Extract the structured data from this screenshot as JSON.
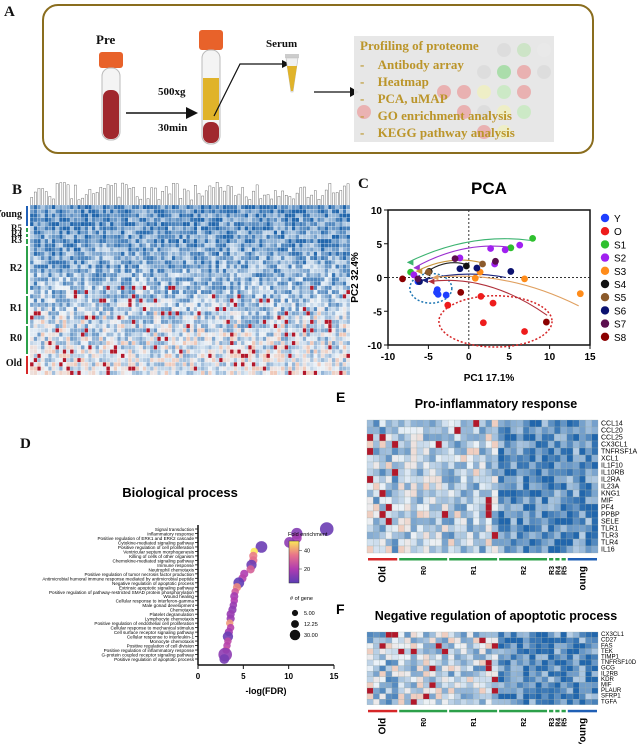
{
  "panelA": {
    "letter": "A",
    "pre_label": "Pre",
    "spin_speed": "500xg",
    "spin_time": "30min",
    "serum_label": "Serum",
    "profiling_title": "Profiling of proteome",
    "profiling_items": [
      "Antibody array",
      "Heatmap",
      "PCA, uMAP",
      "GO enrichment analysis",
      "KEGG pathway analysis"
    ],
    "colors": {
      "border": "#8a6d1e",
      "text": "#b8901f",
      "blood": "#a0282e",
      "serum": "#e0b32a",
      "cap": "#e8622a"
    }
  },
  "panelB": {
    "letter": "B",
    "groups": [
      {
        "label": "Young",
        "color": "#1f5fb5"
      },
      {
        "label": "R5",
        "color": "#2ca04a"
      },
      {
        "label": "R4",
        "color": "#2ca04a"
      },
      {
        "label": "R3",
        "color": "#2ca04a"
      },
      {
        "label": "R2",
        "color": "#2ca04a"
      },
      {
        "label": "R1",
        "color": "#2ca04a"
      },
      {
        "label": "R0",
        "color": "#2ca04a"
      },
      {
        "label": "Old",
        "color": "#d62728"
      }
    ]
  },
  "chart_data": [
    {
      "type": "scatter",
      "id": "pca",
      "letter": "C",
      "title": "PCA",
      "xlabel": "PC1 17.1%",
      "ylabel": "PC2 32.4%",
      "xlim": [
        -10,
        15
      ],
      "ylim": [
        -10,
        10
      ],
      "xticks": [
        -10,
        -5,
        0,
        5,
        10,
        15
      ],
      "yticks": [
        -10,
        -5,
        0,
        5,
        10
      ],
      "legend_position": "right",
      "series": [
        {
          "name": "Y",
          "color": "#1f3fff",
          "points": [
            [
              -3.9,
              -1.8
            ],
            [
              -4.0,
              -2.2
            ],
            [
              -3.8,
              -2.5
            ],
            [
              -2.8,
              -2.6
            ],
            [
              -6.3,
              -0.6
            ]
          ]
        },
        {
          "name": "O",
          "color": "#ee1c1c",
          "points": [
            [
              -2.6,
              -4.1
            ],
            [
              1.5,
              -2.8
            ],
            [
              3.0,
              -3.8
            ],
            [
              1.8,
              -6.7
            ],
            [
              6.9,
              -8.0
            ]
          ]
        },
        {
          "name": "S1",
          "color": "#2fc02f",
          "points": [
            [
              7.9,
              5.8
            ],
            [
              5.2,
              4.4
            ],
            [
              -7.2,
              0.8
            ]
          ]
        },
        {
          "name": "S2",
          "color": "#a020f0",
          "points": [
            [
              2.7,
              4.3
            ],
            [
              4.5,
              4.1
            ],
            [
              6.3,
              4.8
            ],
            [
              -1.1,
              2.9
            ],
            [
              3.2,
              2.0
            ],
            [
              -6.8,
              0.4
            ]
          ]
        },
        {
          "name": "S3",
          "color": "#ff8c1a",
          "points": [
            [
              13.8,
              -2.4
            ],
            [
              6.9,
              -0.2
            ],
            [
              1.4,
              0.8
            ],
            [
              0.8,
              -0.1
            ]
          ]
        },
        {
          "name": "S4",
          "color": "#111111",
          "points": [
            [
              -0.3,
              1.7
            ],
            [
              -4.9,
              0.9
            ]
          ]
        },
        {
          "name": "S5",
          "color": "#8b5a2b",
          "points": [
            [
              1.7,
              2.0
            ],
            [
              -5.0,
              0.8
            ]
          ]
        },
        {
          "name": "S6",
          "color": "#0b1270",
          "points": [
            [
              5.2,
              0.9
            ],
            [
              -1.1,
              1.3
            ],
            [
              1.0,
              1.4
            ],
            [
              -6.1,
              -0.6
            ]
          ]
        },
        {
          "name": "S7",
          "color": "#5c0f4e",
          "points": [
            [
              -1.7,
              2.8
            ],
            [
              3.3,
              2.4
            ],
            [
              -6.3,
              -0.2
            ]
          ]
        },
        {
          "name": "S8",
          "color": "#8b0000",
          "points": [
            [
              -8.2,
              -0.2
            ],
            [
              -1.0,
              -2.2
            ],
            [
              9.6,
              -6.6
            ]
          ]
        }
      ],
      "trajectories": [
        {
          "color": "#3cb371",
          "from": [
            7.6,
            5.5
          ],
          "to": [
            -7.6,
            2.2
          ]
        },
        {
          "color": "#9b30d0",
          "from": [
            5.6,
            4.4
          ],
          "to": [
            -6.8,
            1.4
          ]
        },
        {
          "color": "#c8963c",
          "from": [
            1.6,
            2.2
          ],
          "to": [
            -6.5,
            0.9
          ]
        },
        {
          "color": "#222222",
          "from": [
            0.0,
            1.8
          ],
          "to": [
            -5.5,
            0.6
          ]
        },
        {
          "color": "#1a237e",
          "from": [
            4.6,
            0.0
          ],
          "to": [
            -5.8,
            -0.4
          ]
        },
        {
          "color": "#e0a060",
          "from": [
            13.6,
            -4.2
          ],
          "to": [
            -4.5,
            0.0
          ]
        },
        {
          "color": "#b0303a",
          "from": [
            9.7,
            -5.6
          ],
          "to": [
            -5.0,
            -0.6
          ]
        }
      ],
      "ellipses": [
        {
          "color": "#1f77b4",
          "center": [
            -4.7,
            -1.6
          ],
          "radii": [
            2.6,
            2.2
          ]
        },
        {
          "color": "#d62728",
          "center": [
            3.3,
            -6.5
          ],
          "radii": [
            7.0,
            3.8
          ]
        }
      ]
    },
    {
      "type": "scatter",
      "id": "go-bubble",
      "letter": "D",
      "title": "Biological process",
      "xlabel": "-log(FDR)",
      "ylabel": "",
      "xlim": [
        0,
        15
      ],
      "xticks": [
        0,
        5,
        10,
        15
      ],
      "categories": [
        "Signal transduction",
        "Inflammatory response",
        "Positive regulation of ERK1 and ERK2 cascade",
        "Cytokine-mediated signaling pathway",
        "Positive regulation of cell proliferation",
        "Ventricular septum morphogenesis",
        "Killing of cells of other organism",
        "Chemokine-mediated signaling pathway",
        "Immune response",
        "Neutrophil chemotaxis",
        "Positive regulation of tumor necrosis factor production",
        "Antimicrobial humoral immune response mediated by antimicrobial peptide",
        "Negative regulation of apoptotic process",
        "Extrinsic apoptotic signaling pathway",
        "Positive regulation of pathway-restricted SMAD protein phosphorylation",
        "Wound healing",
        "Cellular response to interferon-gamma",
        "Male gonad development",
        "Chemotaxis",
        "Platelet degranulation",
        "Lymphocyte chemotaxis",
        "Positive regulation of endothelial cell proliferation",
        "Cellular response to mechanical stimulus",
        "Cell surface receptor signaling pathway",
        "Cellular response to interleukin-1",
        "Monocyte chemotaxis",
        "Positive regulation of cell division",
        "Positive regulation of inflammatory response",
        "G-protein coupled receptor signaling pathway",
        "Positive regulation of apoptotic process"
      ],
      "x_values": [
        14.2,
        10.9,
        10.9,
        10.1,
        7.0,
        6.2,
        6.1,
        6.1,
        5.9,
        5.8,
        5.1,
        4.9,
        4.5,
        4.3,
        4.1,
        4.0,
        4.0,
        3.9,
        3.8,
        3.6,
        3.6,
        3.5,
        3.6,
        3.4,
        3.3,
        3.3,
        3.2,
        3.1,
        3.0,
        2.9
      ],
      "fold_enrichment": [
        8,
        12,
        18,
        14,
        8,
        50,
        36,
        34,
        8,
        30,
        20,
        22,
        6,
        38,
        28,
        18,
        20,
        16,
        14,
        16,
        16,
        40,
        22,
        18,
        8,
        24,
        22,
        28,
        14,
        10
      ],
      "gene_count": [
        30,
        18,
        12,
        16,
        20,
        5,
        7,
        7,
        14,
        7,
        7,
        7,
        16,
        7,
        5,
        7,
        5,
        5,
        7,
        7,
        7,
        5,
        5,
        7,
        14,
        5,
        5,
        5,
        30,
        12
      ],
      "color_legend": {
        "title": "Fold enrichment",
        "ticks": [
          20,
          40
        ],
        "range": [
          5,
          50
        ],
        "colors": [
          "#5b3db5",
          "#b03cb0",
          "#e8748a",
          "#fbe85a"
        ]
      },
      "size_legend": {
        "title": "# of gene",
        "values": [
          "5.00",
          "12.25",
          "30.00"
        ]
      }
    },
    {
      "type": "heatmap",
      "id": "pro-inflammatory",
      "letter": "E",
      "title": "Pro-inflammatory response",
      "rows": [
        "CCL14",
        "CCL20",
        "CCL25",
        "CX3CL1",
        "TNFRSF1A",
        "XCL1",
        "IL1F10",
        "IL10RB",
        "IL2RA",
        "IL23A",
        "KNG1",
        "MIF",
        "PF4",
        "PPBP",
        "SELE",
        "TLR1",
        "TLR3",
        "TLR4",
        "IL16"
      ],
      "groups": [
        {
          "label": "Old",
          "color": "#d62728",
          "n": 5
        },
        {
          "label": "R0",
          "color": "#2ca04a",
          "n": 8
        },
        {
          "label": "R1",
          "color": "#2ca04a",
          "n": 8
        },
        {
          "label": "R2",
          "color": "#2ca04a",
          "n": 8
        },
        {
          "label": "R3",
          "color": "#2ca04a",
          "n": 1
        },
        {
          "label": "R4",
          "color": "#2ca04a",
          "n": 1
        },
        {
          "label": "R5",
          "color": "#2ca04a",
          "n": 1
        },
        {
          "label": "Young",
          "color": "#1f5fb5",
          "n": 5
        }
      ]
    },
    {
      "type": "heatmap",
      "id": "neg-apoptotic",
      "letter": "F",
      "title": "Negative regulation of apoptotic process",
      "rows": [
        "CX3CL1",
        "CD27",
        "FAS",
        "TEK",
        "TIMP1",
        "TNFRSF10D",
        "GCG",
        "IL2RB",
        "KDR",
        "MIF",
        "PLAUR",
        "SFRP1",
        "TGFA"
      ],
      "groups": [
        {
          "label": "Old",
          "color": "#d62728",
          "n": 5
        },
        {
          "label": "R0",
          "color": "#2ca04a",
          "n": 8
        },
        {
          "label": "R1",
          "color": "#2ca04a",
          "n": 8
        },
        {
          "label": "R2",
          "color": "#2ca04a",
          "n": 8
        },
        {
          "label": "R3",
          "color": "#2ca04a",
          "n": 1
        },
        {
          "label": "R4",
          "color": "#2ca04a",
          "n": 1
        },
        {
          "label": "R5",
          "color": "#2ca04a",
          "n": 1
        },
        {
          "label": "Young",
          "color": "#1f5fb5",
          "n": 5
        }
      ]
    }
  ]
}
